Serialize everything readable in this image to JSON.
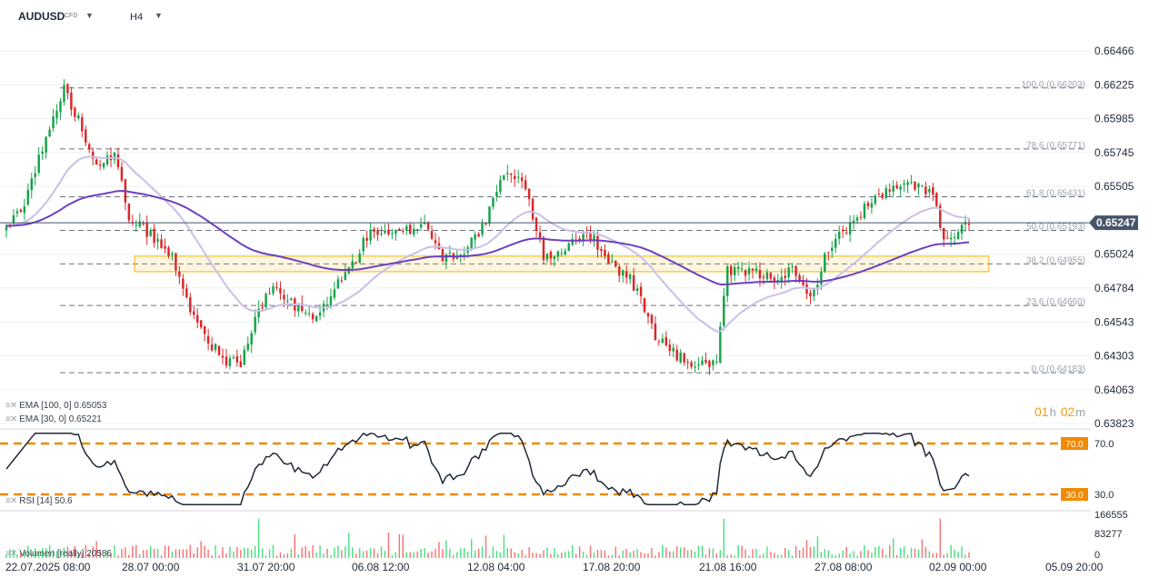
{
  "header": {
    "symbol": "AUDUSD",
    "instrument_type": "CFD",
    "symbol_dropdown_icon": "caret-down-icon",
    "timeframe": "H4",
    "timeframe_dropdown_icon": "caret-down-icon"
  },
  "colors": {
    "bull": "#16a34a",
    "bear": "#dc2626",
    "ema100": "#6d3fc0",
    "ema30": "#c9bfe8",
    "fib": "#9ca3af",
    "zone": "#f5b800",
    "rsi": "#1f2937",
    "rsi_levels": "#f08a00",
    "price_tag": "#475569"
  },
  "chart_data": {
    "type": "candlestick",
    "y_axis_ticks": [
      "0.66466",
      "0.66225",
      "0.65985",
      "0.65745",
      "0.65505",
      "0.65247",
      "0.65024",
      "0.64784",
      "0.64543",
      "0.64303",
      "0.64063",
      "0.63823"
    ],
    "ylim": [
      0.63823,
      0.66466
    ],
    "x_axis_ticks": [
      "22.07.2025 08:00",
      "28.07 00:00",
      "31.07 20:00",
      "06.08 12:00",
      "12.08 04:00",
      "17.08 20:00",
      "21.08 16:00",
      "27.08 08:00",
      "02.09 00:00",
      "05.09 20:00"
    ],
    "last_price": "0.65247",
    "fib_levels": [
      {
        "label": "100.0 (0.66203)",
        "value": 0.66203
      },
      {
        "label": "78.6 (0.65771)",
        "value": 0.65771
      },
      {
        "label": "61.8 (0.65431)",
        "value": 0.65431
      },
      {
        "label": "50.0 (0.65193)",
        "value": 0.65193
      },
      {
        "label": "38.2 (0.64955)",
        "value": 0.64955
      },
      {
        "label": "23.6 (0.64660)",
        "value": 0.6466
      },
      {
        "label": "0.0 (0.64183)",
        "value": 0.64183
      }
    ],
    "support_zone": [
      0.649,
      0.6501
    ],
    "anchors": [
      [
        0,
        0.652
      ],
      [
        5,
        0.654
      ],
      [
        9,
        0.657
      ],
      [
        13,
        0.6598
      ],
      [
        16,
        0.662
      ],
      [
        20,
        0.6597
      ],
      [
        25,
        0.6568
      ],
      [
        30,
        0.6572
      ],
      [
        34,
        0.653
      ],
      [
        40,
        0.6516
      ],
      [
        46,
        0.65
      ],
      [
        50,
        0.647
      ],
      [
        55,
        0.6445
      ],
      [
        60,
        0.6428
      ],
      [
        65,
        0.6425
      ],
      [
        69,
        0.6456
      ],
      [
        74,
        0.648
      ],
      [
        80,
        0.6465
      ],
      [
        86,
        0.6456
      ],
      [
        90,
        0.6475
      ],
      [
        96,
        0.6495
      ],
      [
        101,
        0.652
      ],
      [
        106,
        0.6515
      ],
      [
        112,
        0.652
      ],
      [
        116,
        0.6525
      ],
      [
        121,
        0.65
      ],
      [
        127,
        0.6505
      ],
      [
        133,
        0.6525
      ],
      [
        137,
        0.6555
      ],
      [
        142,
        0.656
      ],
      [
        145,
        0.654
      ],
      [
        149,
        0.65
      ],
      [
        154,
        0.6505
      ],
      [
        158,
        0.6515
      ],
      [
        163,
        0.6513
      ],
      [
        168,
        0.6495
      ],
      [
        173,
        0.6485
      ],
      [
        176,
        0.647
      ],
      [
        180,
        0.6445
      ],
      [
        186,
        0.643
      ],
      [
        192,
        0.6423
      ],
      [
        197,
        0.6427
      ],
      [
        200,
        0.649
      ],
      [
        206,
        0.649
      ],
      [
        212,
        0.6486
      ],
      [
        218,
        0.649
      ],
      [
        223,
        0.647
      ],
      [
        228,
        0.6507
      ],
      [
        233,
        0.652
      ],
      [
        238,
        0.6535
      ],
      [
        243,
        0.6545
      ],
      [
        248,
        0.655
      ],
      [
        253,
        0.6552
      ],
      [
        257,
        0.6545
      ],
      [
        260,
        0.651
      ],
      [
        264,
        0.6518
      ],
      [
        267,
        0.6523
      ]
    ],
    "ema100": {
      "label": "EMA",
      "params": "[100,  0]",
      "value": "0.65053"
    },
    "ema30": {
      "label": "EMA",
      "params": "[30,  0]",
      "value": "0.65221"
    },
    "rsi": {
      "label": "RSI",
      "params": "[14]",
      "value": "50.6",
      "levels": [
        70.0,
        30.0
      ],
      "level_labels": [
        "70.0",
        "30.0"
      ],
      "axis_ticks": [
        "70.0",
        "30.0"
      ],
      "ylim": [
        20,
        80
      ]
    },
    "volume": {
      "label": "Volumen",
      "params": "[really]",
      "value": "20586",
      "axis_ticks": [
        "166555",
        "83277",
        "0"
      ],
      "ylim": [
        0,
        166555
      ]
    }
  },
  "countdown": {
    "hours": "01",
    "h_unit": "h",
    "minutes": "02",
    "m_unit": "m"
  }
}
